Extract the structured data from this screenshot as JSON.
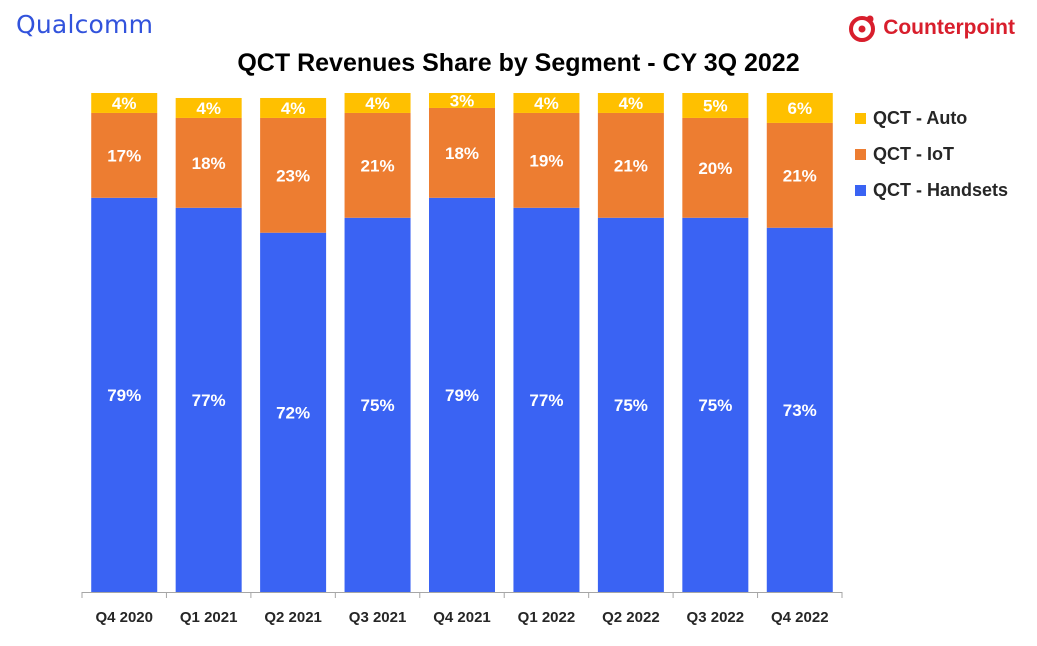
{
  "branding": {
    "left_logo": "Qualcomm",
    "right_logo": "Counterpoint",
    "right_logo_color": "#d81e2c"
  },
  "chart_data": {
    "type": "bar",
    "stacked": true,
    "title": "QCT Revenues Share by Segment - CY 3Q 2022",
    "xlabel": "",
    "ylabel": "",
    "ylim": [
      0,
      100
    ],
    "grid": false,
    "legend_position": "right",
    "categories": [
      "Q4 2020",
      "Q1 2021",
      "Q2 2021",
      "Q3 2021",
      "Q4 2021",
      "Q1 2022",
      "Q2 2022",
      "Q3 2022",
      "Q4 2022"
    ],
    "series": [
      {
        "name": "QCT - Handsets",
        "color": "#3a63f3",
        "values": [
          79,
          77,
          72,
          75,
          79,
          77,
          75,
          75,
          73
        ]
      },
      {
        "name": "QCT - IoT",
        "color": "#ed7d31",
        "values": [
          17,
          18,
          23,
          21,
          18,
          19,
          21,
          20,
          21
        ]
      },
      {
        "name": "QCT - Auto",
        "color": "#ffc000",
        "values": [
          4,
          4,
          4,
          4,
          3,
          4,
          4,
          5,
          6
        ]
      }
    ],
    "legend_order": [
      "QCT - Auto",
      "QCT - IoT",
      "QCT - Handsets"
    ],
    "value_suffix": "%"
  }
}
